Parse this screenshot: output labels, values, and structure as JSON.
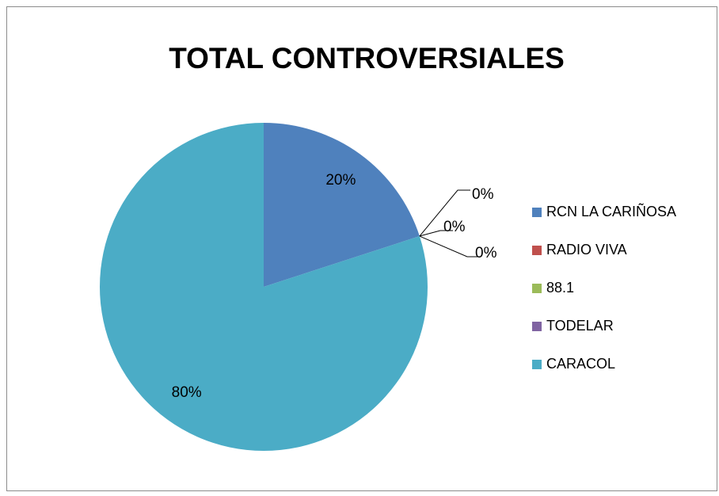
{
  "chart_data": {
    "type": "pie",
    "title": "TOTAL CONTROVERSIALES",
    "categories": [
      "RCN LA CARIÑOSA",
      "RADIO VIVA",
      "88.1",
      "TODELAR",
      "CARACOL"
    ],
    "values": [
      20,
      0,
      0,
      0,
      80
    ],
    "value_labels": [
      "20%",
      "0%",
      "0%",
      "0%",
      "80%"
    ],
    "colors": [
      "#4f81bd",
      "#c0504d",
      "#9bbb59",
      "#8064a2",
      "#4bacc6"
    ],
    "legend": "right"
  }
}
